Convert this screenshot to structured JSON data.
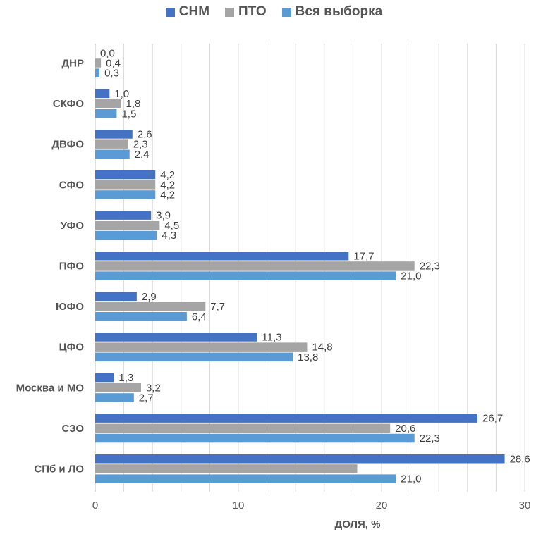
{
  "chart_data": {
    "type": "bar",
    "orientation": "horizontal",
    "title": "",
    "xlabel": "ДОЛЯ, %",
    "ylabel": "",
    "xlim": [
      0,
      30
    ],
    "x_ticks": [
      0,
      10,
      20,
      30
    ],
    "grid": true,
    "legend_position": "top",
    "categories": [
      "ДНР",
      "СКФО",
      "ДВФО",
      "СФО",
      "УФО",
      "ПФО",
      "ЮФО",
      "ЦФО",
      "Москва и МО",
      "СЗО",
      "СПб и ЛО"
    ],
    "series": [
      {
        "name": "СНМ",
        "color": "#4472c4",
        "values": [
          0.0,
          1.0,
          2.6,
          4.2,
          3.9,
          17.7,
          2.9,
          11.3,
          1.3,
          26.7,
          28.6
        ],
        "labels": [
          "0,0",
          "1,0",
          "2,6",
          "4,2",
          "3,9",
          "17,7",
          "2,9",
          "11,3",
          "1,3",
          "26,7",
          "28,6"
        ]
      },
      {
        "name": "ПТО",
        "color": "#a5a5a5",
        "values": [
          0.4,
          1.8,
          2.3,
          4.2,
          4.5,
          22.3,
          7.7,
          14.8,
          3.2,
          20.6,
          18.3
        ],
        "labels": [
          "0,4",
          "1,8",
          "2,3",
          "4,2",
          "4,5",
          "22,3",
          "7,7",
          "14,8",
          "3,2",
          "20,6",
          ""
        ]
      },
      {
        "name": "Вся выборка",
        "color": "#5b9bd5",
        "values": [
          0.3,
          1.5,
          2.4,
          4.2,
          4.3,
          21.0,
          6.4,
          13.8,
          2.7,
          22.3,
          21.0
        ],
        "labels": [
          "0,3",
          "1,5",
          "2,4",
          "4,2",
          "4,3",
          "21,0",
          "6,4",
          "13,8",
          "2,7",
          "22,3",
          "21,0"
        ]
      }
    ]
  }
}
